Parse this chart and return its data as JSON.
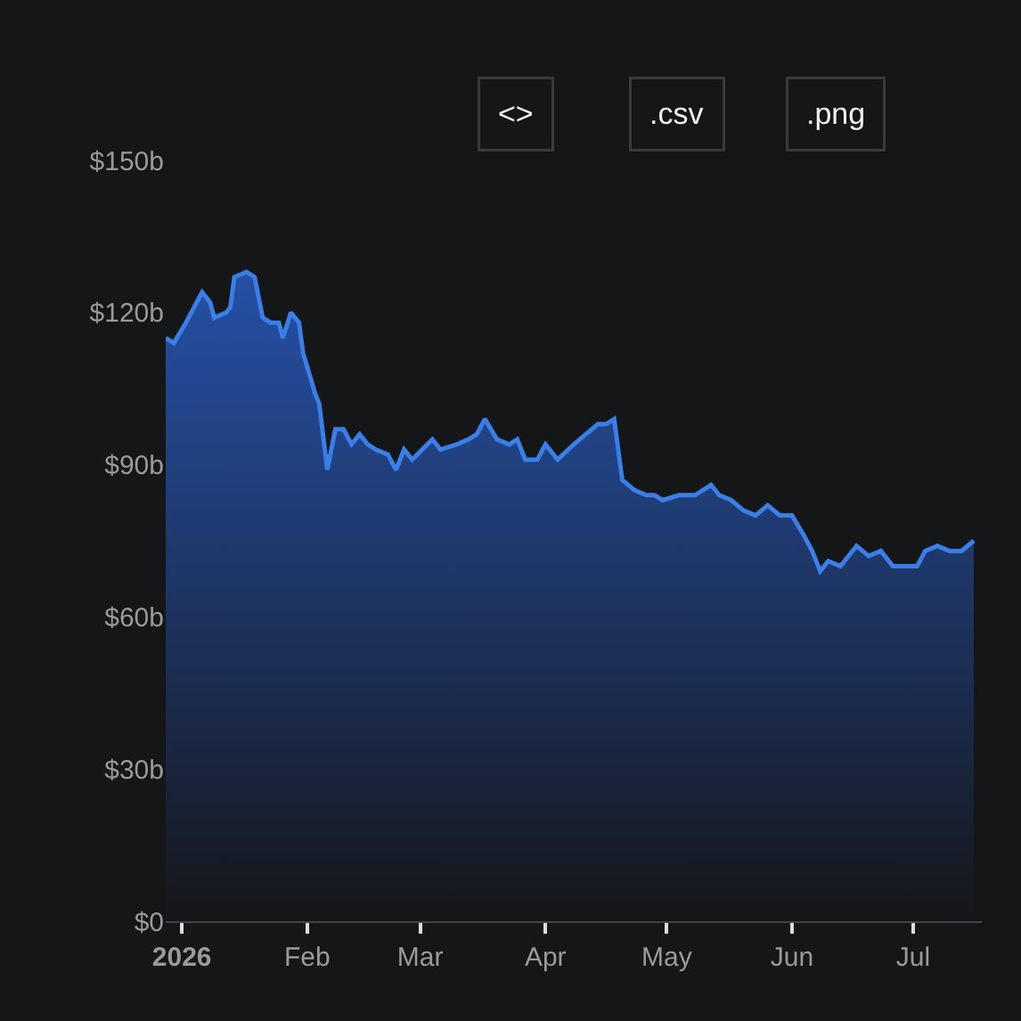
{
  "chart_data": {
    "type": "area",
    "x": [
      "2025-12-28",
      "2025-12-30",
      "2026-01-02",
      "2026-01-04",
      "2026-01-06",
      "2026-01-08",
      "2026-01-09",
      "2026-01-12",
      "2026-01-13",
      "2026-01-14",
      "2026-01-17",
      "2026-01-19",
      "2026-01-21",
      "2026-01-23",
      "2026-01-25",
      "2026-01-26",
      "2026-01-28",
      "2026-01-30",
      "2026-01-31",
      "2026-02-03",
      "2026-02-04",
      "2026-02-06",
      "2026-02-08",
      "2026-02-10",
      "2026-02-12",
      "2026-02-14",
      "2026-02-16",
      "2026-02-18",
      "2026-02-21",
      "2026-02-23",
      "2026-02-25",
      "2026-02-27",
      "2026-03-04",
      "2026-03-06",
      "2026-03-10",
      "2026-03-13",
      "2026-03-15",
      "2026-03-17",
      "2026-03-20",
      "2026-03-23",
      "2026-03-25",
      "2026-03-27",
      "2026-03-30",
      "2026-04-01",
      "2026-04-04",
      "2026-04-08",
      "2026-04-11",
      "2026-04-14",
      "2026-04-16",
      "2026-04-18",
      "2026-04-20",
      "2026-04-23",
      "2026-04-26",
      "2026-04-28",
      "2026-04-30",
      "2026-05-04",
      "2026-05-08",
      "2026-05-12",
      "2026-05-14",
      "2026-05-17",
      "2026-05-20",
      "2026-05-23",
      "2026-05-26",
      "2026-05-29",
      "2026-06-01",
      "2026-06-04",
      "2026-06-06",
      "2026-06-08",
      "2026-06-10",
      "2026-06-13",
      "2026-06-17",
      "2026-06-20",
      "2026-06-23",
      "2026-06-26",
      "2026-06-30",
      "2026-07-02",
      "2026-07-04",
      "2026-07-07",
      "2026-07-10",
      "2026-07-13",
      "2026-07-16"
    ],
    "series": [
      {
        "color": "#3a7ee8",
        "values": [
          115,
          114,
          118,
          121,
          124,
          122,
          119,
          120,
          121,
          127,
          128,
          127,
          119,
          118,
          118,
          115,
          120,
          118,
          112,
          104,
          102,
          89,
          97,
          97,
          94,
          96,
          94,
          93,
          92,
          89,
          93,
          91,
          95,
          93,
          94,
          95,
          96,
          99,
          95,
          94,
          95,
          91,
          91,
          94,
          91,
          94,
          96,
          98,
          98,
          99,
          87,
          85,
          84,
          84,
          83,
          84,
          84,
          86,
          84,
          83,
          81,
          80,
          82,
          80,
          80,
          76,
          73,
          69,
          71,
          70,
          74,
          72,
          73,
          70,
          70,
          70,
          73,
          74,
          73,
          73,
          75
        ]
      }
    ],
    "xlim": [
      "2025-12-28",
      "2026-07-18"
    ],
    "xticks": [
      {
        "value": "2026-01-01",
        "label": "2026"
      },
      {
        "value": "2026-02-01",
        "label": "Feb"
      },
      {
        "value": "2026-03-01",
        "label": "Mar"
      },
      {
        "value": "2026-04-01",
        "label": "Apr"
      },
      {
        "value": "2026-05-01",
        "label": "May"
      },
      {
        "value": "2026-06-01",
        "label": "Jun"
      },
      {
        "value": "2026-07-01",
        "label": "Jul"
      }
    ],
    "ylim": [
      0,
      150
    ],
    "yticks": [
      {
        "value": 0,
        "label": "$0"
      },
      {
        "value": 30,
        "label": "$30b"
      },
      {
        "value": 60,
        "label": "$60b"
      },
      {
        "value": 90,
        "label": "$90b"
      },
      {
        "value": 120,
        "label": "$120b"
      },
      {
        "value": 150,
        "label": "$150b"
      }
    ],
    "annotations": [
      "<>",
      ".csv",
      ".png"
    ],
    "grid": false,
    "marker": "none",
    "line_style": "solid"
  }
}
